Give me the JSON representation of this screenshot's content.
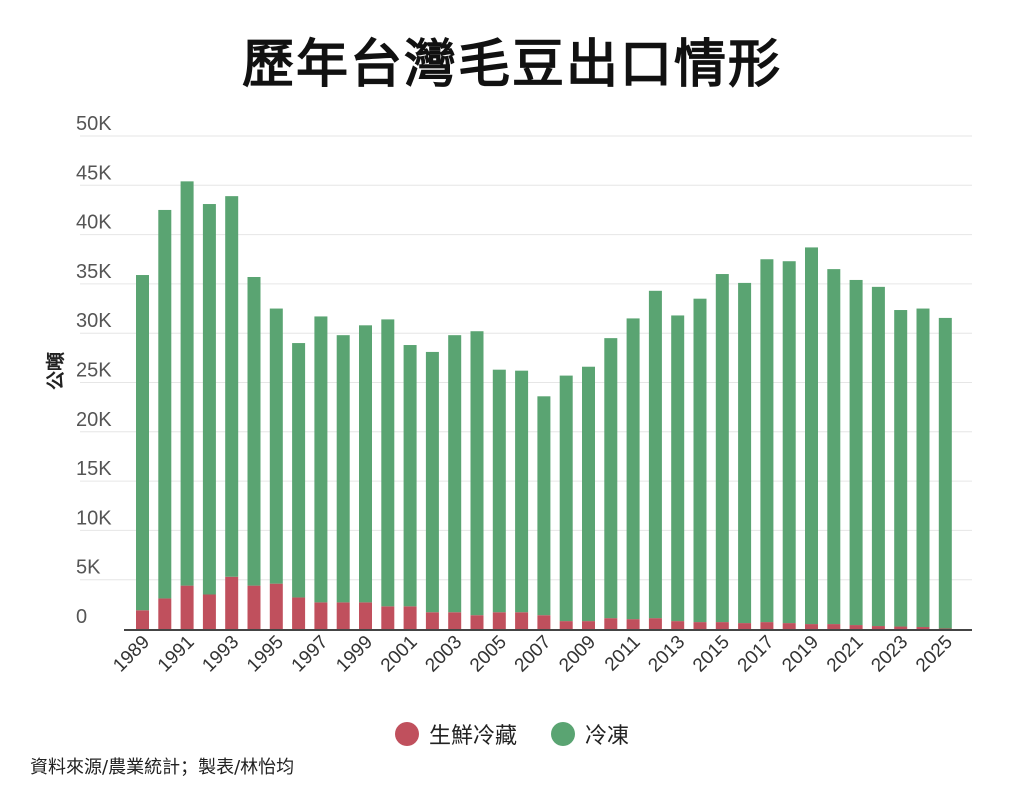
{
  "title": "歷年台灣毛豆出口情形",
  "source": "資料來源/農業統計；製表/林怡均",
  "colors": {
    "fresh": "#c0505d",
    "frozen": "#5aa472",
    "grid": "#e6e6e6",
    "axis": "#444444"
  },
  "chart_data": {
    "type": "bar",
    "stacked": true,
    "title": "歷年台灣毛豆出口情形",
    "ylabel": "公噸",
    "xlabel": "",
    "ylim": [
      0,
      50000
    ],
    "yticks": [
      0,
      5000,
      10000,
      15000,
      20000,
      25000,
      30000,
      35000,
      40000,
      45000,
      50000
    ],
    "ytick_labels": [
      "0",
      "5K",
      "10K",
      "15K",
      "20K",
      "25K",
      "30K",
      "35K",
      "40K",
      "45K",
      "50K"
    ],
    "categories": [
      "1989",
      "1990",
      "1991",
      "1992",
      "1993",
      "1994",
      "1995",
      "1996",
      "1997",
      "1998",
      "1999",
      "2000",
      "2001",
      "2002",
      "2003",
      "2004",
      "2005",
      "2006",
      "2007",
      "2008",
      "2009",
      "2010",
      "2011",
      "2012",
      "2013",
      "2014",
      "2015",
      "2016",
      "2017",
      "2018",
      "2019",
      "2020",
      "2021",
      "2022",
      "2023",
      "2024",
      "2025"
    ],
    "xtick_labels": [
      "1989",
      "1991",
      "1993",
      "1995",
      "1997",
      "1999",
      "2001",
      "2003",
      "2005",
      "2007",
      "2009",
      "2011",
      "2013",
      "2015",
      "2017",
      "2019",
      "2021",
      "2023",
      "2025"
    ],
    "grid": true,
    "legend": "bottom",
    "series": [
      {
        "name": "生鮮冷藏",
        "color": "#c0505d",
        "values": [
          1900,
          3100,
          4400,
          3500,
          5300,
          4400,
          4600,
          3200,
          2700,
          2700,
          2700,
          2300,
          2300,
          1700,
          1700,
          1400,
          1700,
          1700,
          1400,
          800,
          800,
          1100,
          1000,
          1100,
          800,
          700,
          700,
          600,
          700,
          600,
          500,
          500,
          400,
          300,
          250,
          200,
          50
        ]
      },
      {
        "name": "冷凍",
        "color": "#5aa472",
        "values": [
          34000,
          39400,
          41000,
          39600,
          38600,
          31300,
          27900,
          25800,
          29000,
          27100,
          28100,
          29100,
          26500,
          26400,
          28100,
          28800,
          24600,
          24500,
          22200,
          24900,
          25800,
          28400,
          30500,
          33200,
          31000,
          32800,
          35300,
          34500,
          36800,
          36700,
          38200,
          36000,
          35000,
          34400,
          32100,
          32300,
          31500
        ]
      }
    ]
  }
}
